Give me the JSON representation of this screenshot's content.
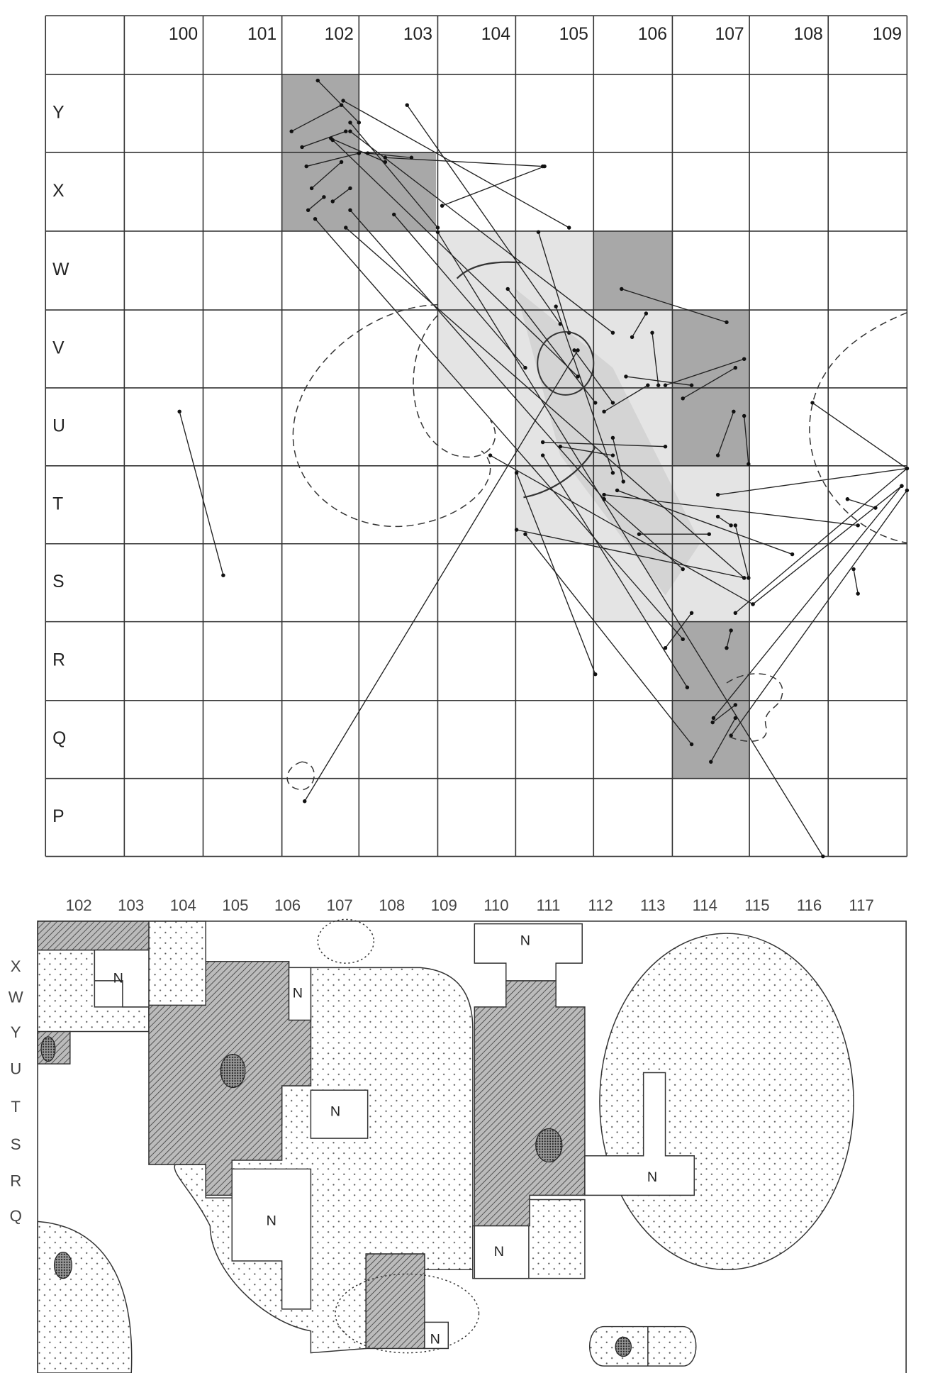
{
  "top_map": {
    "columns": [
      "100",
      "101",
      "102",
      "103",
      "104",
      "105",
      "106",
      "107",
      "108",
      "109"
    ],
    "rows": [
      "Y",
      "X",
      "W",
      "V",
      "U",
      "T",
      "S",
      "R",
      "Q",
      "P"
    ]
  },
  "bottom_map": {
    "columns": [
      "102",
      "103",
      "104",
      "105",
      "106",
      "107",
      "108",
      "109",
      "110",
      "111",
      "112",
      "113",
      "114",
      "115",
      "116",
      "117"
    ],
    "rows": [
      "X",
      "W",
      "Y",
      "U",
      "T",
      "S",
      "R",
      "Q"
    ],
    "labels": [
      "N",
      "N",
      "N",
      "N",
      "N",
      "N",
      "N",
      "N"
    ]
  }
}
